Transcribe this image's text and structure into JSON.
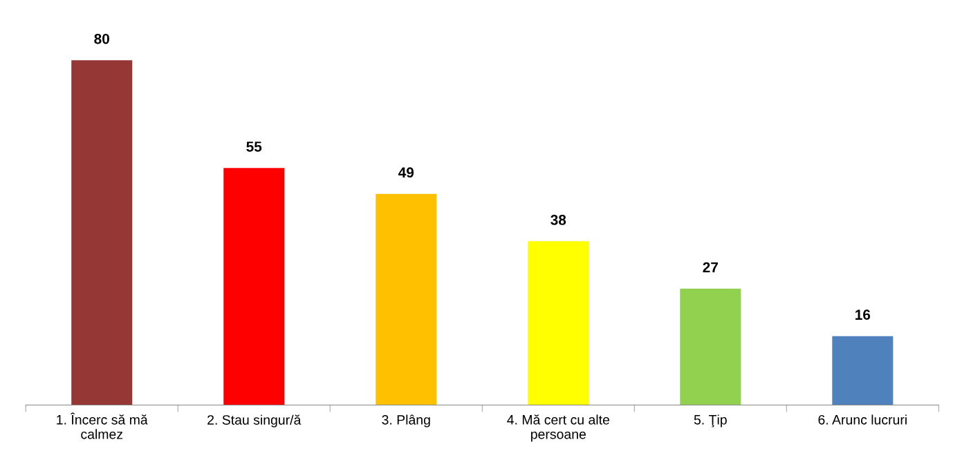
{
  "chart_data": {
    "type": "bar",
    "categories": [
      "1. Încerc să mă\ncalmez",
      "2. Stau singur/ă",
      "3. Plâng",
      "4. Mă cert cu alte\npersoane",
      "5. Ţip",
      "6. Arunc lucruri"
    ],
    "values": [
      80,
      55,
      49,
      38,
      27,
      16
    ],
    "colors": [
      "#953735",
      "#ff0000",
      "#ffc000",
      "#ffff00",
      "#92d050",
      "#4f81bd"
    ],
    "data_labels": true,
    "grid": false,
    "legend": false,
    "tick_labels": "x"
  }
}
